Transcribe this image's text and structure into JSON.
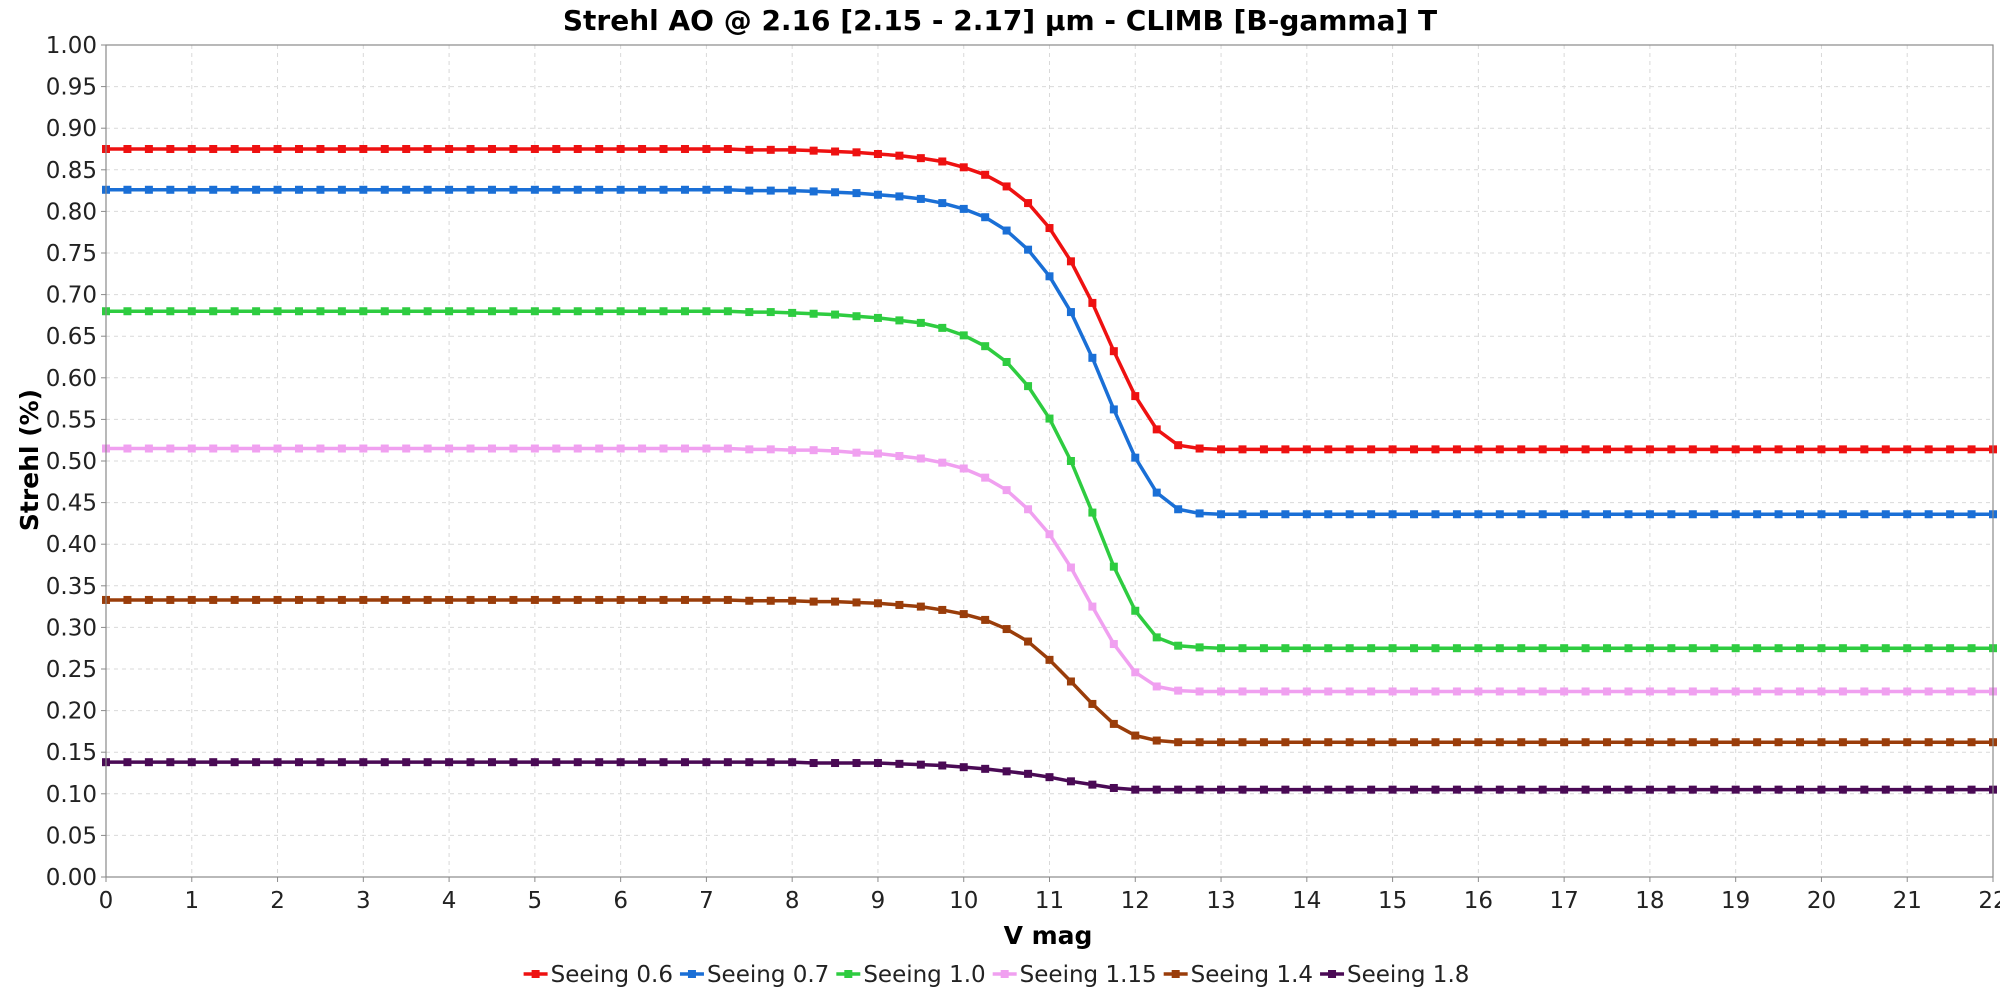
{
  "chart_data": {
    "type": "line",
    "title": "Strehl AO @ 2.16 [2.15 - 2.17] µm - CLIMB [B-gamma] T",
    "xlabel": "V mag",
    "ylabel": "Strehl (%)",
    "xlim": [
      0,
      22
    ],
    "ylim": [
      0.0,
      1.0
    ],
    "x_ticks": [
      "0",
      "1",
      "2",
      "3",
      "4",
      "5",
      "6",
      "7",
      "8",
      "9",
      "10",
      "11",
      "12",
      "13",
      "14",
      "15",
      "16",
      "17",
      "18",
      "19",
      "20",
      "21",
      "22"
    ],
    "y_ticks": [
      "0.00",
      "0.05",
      "0.10",
      "0.15",
      "0.20",
      "0.25",
      "0.30",
      "0.35",
      "0.40",
      "0.45",
      "0.50",
      "0.55",
      "0.60",
      "0.65",
      "0.70",
      "0.75",
      "0.80",
      "0.85",
      "0.90",
      "0.95",
      "1.00"
    ],
    "grid": true,
    "legend_position": "bottom",
    "x": [
      0,
      0.25,
      0.5,
      0.75,
      1,
      1.25,
      1.5,
      1.75,
      2,
      2.25,
      2.5,
      2.75,
      3,
      3.25,
      3.5,
      3.75,
      4,
      4.25,
      4.5,
      4.75,
      5,
      5.25,
      5.5,
      5.75,
      6,
      6.25,
      6.5,
      6.75,
      7,
      7.25,
      7.5,
      7.75,
      8,
      8.25,
      8.5,
      8.75,
      9,
      9.25,
      9.5,
      9.75,
      10,
      10.25,
      10.5,
      10.75,
      11,
      11.25,
      11.5,
      11.75,
      12,
      12.25,
      12.5,
      12.75,
      13,
      13.25,
      13.5,
      13.75,
      14,
      14.25,
      14.5,
      14.75,
      15,
      15.25,
      15.5,
      15.75,
      16,
      16.25,
      16.5,
      16.75,
      17,
      17.25,
      17.5,
      17.75,
      18,
      18.25,
      18.5,
      18.75,
      19,
      19.25,
      19.5,
      19.75,
      20,
      20.25,
      20.5,
      20.75,
      21,
      21.25,
      21.5,
      21.75,
      22
    ],
    "series": [
      {
        "name": "Seeing 0.6",
        "color": "#ee1111",
        "values": [
          0.875,
          0.875,
          0.875,
          0.875,
          0.875,
          0.875,
          0.875,
          0.875,
          0.875,
          0.875,
          0.875,
          0.875,
          0.875,
          0.875,
          0.875,
          0.875,
          0.875,
          0.875,
          0.875,
          0.875,
          0.875,
          0.875,
          0.875,
          0.875,
          0.875,
          0.875,
          0.875,
          0.875,
          0.875,
          0.875,
          0.874,
          0.874,
          0.874,
          0.873,
          0.872,
          0.871,
          0.869,
          0.867,
          0.864,
          0.86,
          0.853,
          0.844,
          0.83,
          0.81,
          0.78,
          0.74,
          0.69,
          0.632,
          0.578,
          0.538,
          0.519,
          0.515,
          0.514,
          0.514,
          0.514,
          0.514,
          0.514,
          0.514,
          0.514,
          0.514,
          0.514,
          0.514,
          0.514,
          0.514,
          0.514,
          0.514,
          0.514,
          0.514,
          0.514,
          0.514,
          0.514,
          0.514,
          0.514,
          0.514,
          0.514,
          0.514,
          0.514,
          0.514,
          0.514,
          0.514,
          0.514,
          0.514,
          0.514,
          0.514,
          0.514,
          0.514,
          0.514,
          0.514,
          0.514
        ]
      },
      {
        "name": "Seeing 0.7",
        "color": "#1a6fd6",
        "values": [
          0.826,
          0.826,
          0.826,
          0.826,
          0.826,
          0.826,
          0.826,
          0.826,
          0.826,
          0.826,
          0.826,
          0.826,
          0.826,
          0.826,
          0.826,
          0.826,
          0.826,
          0.826,
          0.826,
          0.826,
          0.826,
          0.826,
          0.826,
          0.826,
          0.826,
          0.826,
          0.826,
          0.826,
          0.826,
          0.826,
          0.825,
          0.825,
          0.825,
          0.824,
          0.823,
          0.822,
          0.82,
          0.818,
          0.815,
          0.81,
          0.803,
          0.793,
          0.777,
          0.754,
          0.722,
          0.679,
          0.624,
          0.562,
          0.504,
          0.462,
          0.442,
          0.437,
          0.436,
          0.436,
          0.436,
          0.436,
          0.436,
          0.436,
          0.436,
          0.436,
          0.436,
          0.436,
          0.436,
          0.436,
          0.436,
          0.436,
          0.436,
          0.436,
          0.436,
          0.436,
          0.436,
          0.436,
          0.436,
          0.436,
          0.436,
          0.436,
          0.436,
          0.436,
          0.436,
          0.436,
          0.436,
          0.436,
          0.436,
          0.436,
          0.436,
          0.436,
          0.436,
          0.436,
          0.436
        ]
      },
      {
        "name": "Seeing 1.0",
        "color": "#2ecc40",
        "values": [
          0.68,
          0.68,
          0.68,
          0.68,
          0.68,
          0.68,
          0.68,
          0.68,
          0.68,
          0.68,
          0.68,
          0.68,
          0.68,
          0.68,
          0.68,
          0.68,
          0.68,
          0.68,
          0.68,
          0.68,
          0.68,
          0.68,
          0.68,
          0.68,
          0.68,
          0.68,
          0.68,
          0.68,
          0.68,
          0.68,
          0.679,
          0.679,
          0.678,
          0.677,
          0.676,
          0.674,
          0.672,
          0.669,
          0.666,
          0.66,
          0.651,
          0.638,
          0.619,
          0.59,
          0.551,
          0.5,
          0.438,
          0.373,
          0.32,
          0.288,
          0.278,
          0.276,
          0.275,
          0.275,
          0.275,
          0.275,
          0.275,
          0.275,
          0.275,
          0.275,
          0.275,
          0.275,
          0.275,
          0.275,
          0.275,
          0.275,
          0.275,
          0.275,
          0.275,
          0.275,
          0.275,
          0.275,
          0.275,
          0.275,
          0.275,
          0.275,
          0.275,
          0.275,
          0.275,
          0.275,
          0.275,
          0.275,
          0.275,
          0.275,
          0.275,
          0.275,
          0.275,
          0.275,
          0.275
        ]
      },
      {
        "name": "Seeing 1.15",
        "color": "#f0a0f0",
        "values": [
          0.515,
          0.515,
          0.515,
          0.515,
          0.515,
          0.515,
          0.515,
          0.515,
          0.515,
          0.515,
          0.515,
          0.515,
          0.515,
          0.515,
          0.515,
          0.515,
          0.515,
          0.515,
          0.515,
          0.515,
          0.515,
          0.515,
          0.515,
          0.515,
          0.515,
          0.515,
          0.515,
          0.515,
          0.515,
          0.515,
          0.514,
          0.514,
          0.513,
          0.513,
          0.512,
          0.51,
          0.509,
          0.506,
          0.503,
          0.498,
          0.491,
          0.48,
          0.465,
          0.442,
          0.412,
          0.372,
          0.325,
          0.28,
          0.246,
          0.229,
          0.224,
          0.223,
          0.223,
          0.223,
          0.223,
          0.223,
          0.223,
          0.223,
          0.223,
          0.223,
          0.223,
          0.223,
          0.223,
          0.223,
          0.223,
          0.223,
          0.223,
          0.223,
          0.223,
          0.223,
          0.223,
          0.223,
          0.223,
          0.223,
          0.223,
          0.223,
          0.223,
          0.223,
          0.223,
          0.223,
          0.223,
          0.223,
          0.223,
          0.223,
          0.223,
          0.223,
          0.223,
          0.223,
          0.223
        ]
      },
      {
        "name": "Seeing 1.4",
        "color": "#9a3d0a",
        "values": [
          0.333,
          0.333,
          0.333,
          0.333,
          0.333,
          0.333,
          0.333,
          0.333,
          0.333,
          0.333,
          0.333,
          0.333,
          0.333,
          0.333,
          0.333,
          0.333,
          0.333,
          0.333,
          0.333,
          0.333,
          0.333,
          0.333,
          0.333,
          0.333,
          0.333,
          0.333,
          0.333,
          0.333,
          0.333,
          0.333,
          0.332,
          0.332,
          0.332,
          0.331,
          0.331,
          0.33,
          0.329,
          0.327,
          0.325,
          0.321,
          0.316,
          0.309,
          0.298,
          0.283,
          0.261,
          0.235,
          0.208,
          0.184,
          0.17,
          0.164,
          0.162,
          0.162,
          0.162,
          0.162,
          0.162,
          0.162,
          0.162,
          0.162,
          0.162,
          0.162,
          0.162,
          0.162,
          0.162,
          0.162,
          0.162,
          0.162,
          0.162,
          0.162,
          0.162,
          0.162,
          0.162,
          0.162,
          0.162,
          0.162,
          0.162,
          0.162,
          0.162,
          0.162,
          0.162,
          0.162,
          0.162,
          0.162,
          0.162,
          0.162,
          0.162,
          0.162,
          0.162,
          0.162,
          0.162
        ]
      },
      {
        "name": "Seeing 1.8",
        "color": "#4a0a55",
        "values": [
          0.138,
          0.138,
          0.138,
          0.138,
          0.138,
          0.138,
          0.138,
          0.138,
          0.138,
          0.138,
          0.138,
          0.138,
          0.138,
          0.138,
          0.138,
          0.138,
          0.138,
          0.138,
          0.138,
          0.138,
          0.138,
          0.138,
          0.138,
          0.138,
          0.138,
          0.138,
          0.138,
          0.138,
          0.138,
          0.138,
          0.138,
          0.138,
          0.138,
          0.137,
          0.137,
          0.137,
          0.137,
          0.136,
          0.135,
          0.134,
          0.132,
          0.13,
          0.127,
          0.124,
          0.12,
          0.115,
          0.111,
          0.107,
          0.105,
          0.105,
          0.105,
          0.105,
          0.105,
          0.105,
          0.105,
          0.105,
          0.105,
          0.105,
          0.105,
          0.105,
          0.105,
          0.105,
          0.105,
          0.105,
          0.105,
          0.105,
          0.105,
          0.105,
          0.105,
          0.105,
          0.105,
          0.105,
          0.105,
          0.105,
          0.105,
          0.105,
          0.105,
          0.105,
          0.105,
          0.105,
          0.105,
          0.105,
          0.105,
          0.105,
          0.105,
          0.105,
          0.105,
          0.105,
          0.105
        ]
      }
    ]
  }
}
